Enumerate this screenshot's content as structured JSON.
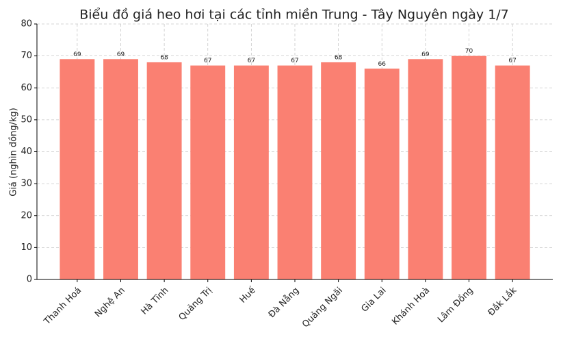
{
  "chart_data": {
    "type": "bar",
    "title": "Biểu đồ giá heo hơi tại các tỉnh miền Trung - Tây Nguyên ngày 1/7",
    "y_label": "Giá (nghìn đồng/kg)",
    "categories": [
      "Thanh Hoá",
      "Nghệ An",
      "Hà Tĩnh",
      "Quảng Trị",
      "Huế",
      "Đà Nẵng",
      "Quảng Ngãi",
      "Gia Lai",
      "Khánh Hoà",
      "Lâm Đồng",
      "Đắk Lắk"
    ],
    "values": [
      69,
      69,
      68,
      67,
      67,
      67,
      68,
      66,
      69,
      70,
      67
    ],
    "color": "#fa8072",
    "ylim": [
      0,
      80
    ],
    "yticks": [
      0,
      10,
      20,
      30,
      40,
      50,
      60,
      70,
      80
    ],
    "grid": true
  }
}
